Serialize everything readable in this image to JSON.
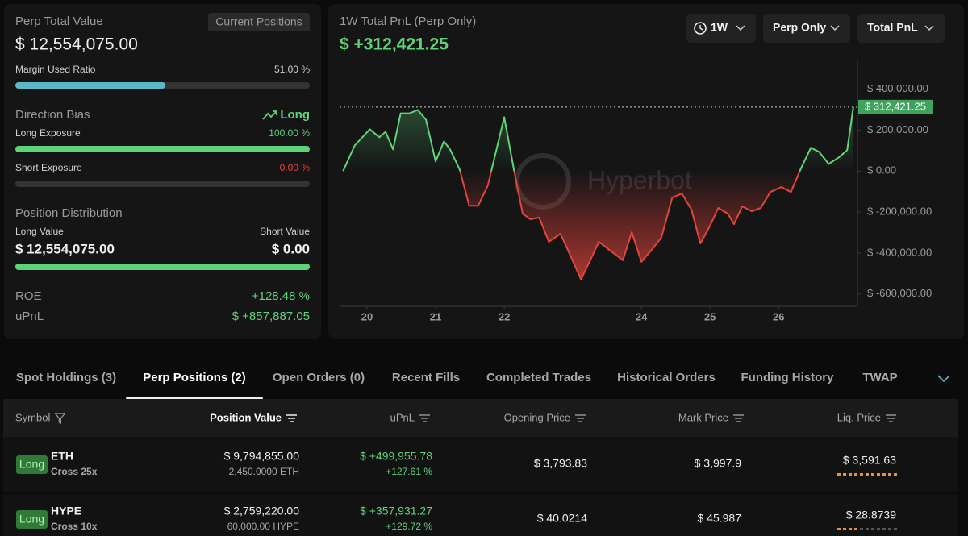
{
  "summary": {
    "title": "Perp Total Value",
    "badge": "Current Positions",
    "total_value": "$ 12,554,075.00",
    "margin": {
      "label": "Margin Used Ratio",
      "text": "51.00 %",
      "value": 51
    },
    "direction": {
      "label": "Direction Bias",
      "value": "Long"
    },
    "long_exposure": {
      "label": "Long Exposure",
      "text": "100.00 %",
      "value": 100
    },
    "short_exposure": {
      "label": "Short Exposure",
      "text": "0.00 %",
      "value": 0
    },
    "distribution": {
      "label": "Position Distribution",
      "long_label": "Long Value",
      "short_label": "Short Value",
      "long_value": "$ 12,554,075.00",
      "short_value": "$ 0.00",
      "long_share": 100
    },
    "roe": {
      "label": "ROE",
      "value": "+128.48 %"
    },
    "upnl": {
      "label": "uPnL",
      "value": "$ +857,887.05"
    }
  },
  "controls": [
    "1W",
    "Perp Only",
    "Total PnL"
  ],
  "chart_data": {
    "type": "line",
    "title": "1W Total PnL (Perp Only)",
    "subtitle": "$ +312,421.25",
    "watermark": "Hyperbot",
    "last_label": "$ 312,421.25",
    "x": [
      19.65,
      19.82,
      20.04,
      20.18,
      20.27,
      20.38,
      20.49,
      20.62,
      20.74,
      20.86,
      21.0,
      21.12,
      21.21,
      21.35,
      21.49,
      21.62,
      21.76,
      22.0,
      22.14,
      22.27,
      22.38,
      22.51,
      22.65,
      22.82,
      22.98,
      23.12,
      23.27,
      23.38,
      23.53,
      23.73,
      23.86,
      24.0,
      24.15,
      24.29,
      24.45,
      24.59,
      24.73,
      24.86,
      25.0,
      25.12,
      25.26,
      25.35,
      25.47,
      25.61,
      25.74,
      25.88,
      26.04,
      26.18,
      26.33,
      26.47,
      26.59,
      26.73,
      26.88,
      27.0,
      27.09
    ],
    "values": [
      0,
      125000,
      204000,
      165000,
      192000,
      106000,
      282000,
      282000,
      298000,
      251000,
      47000,
      145000,
      106000,
      8000,
      -169000,
      -169000,
      -71000,
      263000,
      8000,
      -208000,
      -235000,
      -227000,
      -345000,
      -306000,
      -424000,
      -529000,
      -424000,
      -345000,
      -384000,
      -435000,
      -298000,
      -443000,
      -384000,
      -325000,
      -129000,
      -110000,
      -188000,
      -353000,
      -267000,
      -180000,
      -208000,
      -259000,
      -172000,
      -196000,
      -180000,
      -102000,
      -78000,
      -102000,
      16000,
      114000,
      94000,
      35000,
      67000,
      102000,
      312421.25
    ],
    "positive_color": "#5ed37a",
    "negative_color": "#e5443d",
    "xlim": [
      19.6,
      27.15
    ],
    "xticks": [
      20,
      21,
      22,
      24,
      25,
      26
    ],
    "ylim": [
      -660000,
      540000
    ],
    "yticks": [
      {
        "value": 400000,
        "label": "$ 400,000.00"
      },
      {
        "value": 200000,
        "label": "$ 200,000.00"
      },
      {
        "value": 0,
        "label": "$ 0.00"
      },
      {
        "value": -200000,
        "label": "$ -200,000.00"
      },
      {
        "value": -400000,
        "label": "$ -400,000.00"
      },
      {
        "value": -600000,
        "label": "$ -600,000.00"
      }
    ],
    "grid": false
  },
  "tabs": {
    "items": [
      "Spot Holdings (3)",
      "Perp Positions (2)",
      "Open Orders (0)",
      "Recent Fills",
      "Completed Trades",
      "Historical Orders",
      "Funding History",
      "TWAP"
    ],
    "active": 1
  },
  "table": {
    "columns": [
      "Symbol",
      "Position Value",
      "uPnL",
      "Opening Price",
      "Mark Price",
      "Liq. Price"
    ],
    "rows": [
      {
        "side": "Long",
        "symbol": "ETH",
        "margin": "Cross 25x",
        "value": "$ 9,794,855.00",
        "size": "2,450.0000 ETH",
        "upnl": "$ +499,955.78",
        "upnl_pct": "+127.61 %",
        "open": "$ 3,793.83",
        "mark": "$ 3,997.9",
        "liq": "$ 3,591.63"
      },
      {
        "side": "Long",
        "symbol": "HYPE",
        "margin": "Cross 10x",
        "value": "$ 2,759,220.00",
        "size": "60,000.00 HYPE",
        "upnl": "$ +357,931.27",
        "upnl_pct": "+129.72 %",
        "open": "$ 40.0214",
        "mark": "$ 45.987",
        "liq": "$ 28.8739"
      }
    ]
  }
}
